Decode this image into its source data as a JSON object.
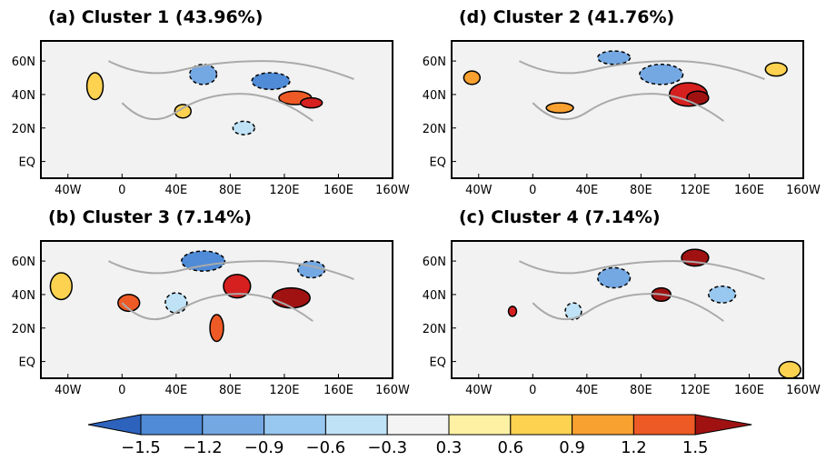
{
  "panels": [
    {
      "title": "(a) Cluster 1 (43.96%)"
    },
    {
      "title": "(d) Cluster 2 (41.76%)"
    },
    {
      "title": "(b) Cluster 3 (7.14%)"
    },
    {
      "title": "(c) Cluster 4 (7.14%)"
    }
  ],
  "x_tick_labels": [
    "40W",
    "0",
    "40E",
    "80E",
    "120E",
    "160E",
    "160W"
  ],
  "y_tick_labels": [
    "60N",
    "40N",
    "20N",
    "EQ"
  ],
  "colorbar": {
    "labels": [
      "−1.5",
      "−1.2",
      "−0.9",
      "−0.6",
      "−0.3",
      "0.3",
      "0.6",
      "0.9",
      "1.2",
      "1.5"
    ],
    "colors": [
      "#2d63bd",
      "#4f8bd6",
      "#74a8e3",
      "#98c7ef",
      "#bfe2f6",
      "#f4f4f4",
      "#fff1a3",
      "#fdd250",
      "#f8a030",
      "#ee5a25",
      "#d61f1f",
      "#a01212"
    ]
  }
}
